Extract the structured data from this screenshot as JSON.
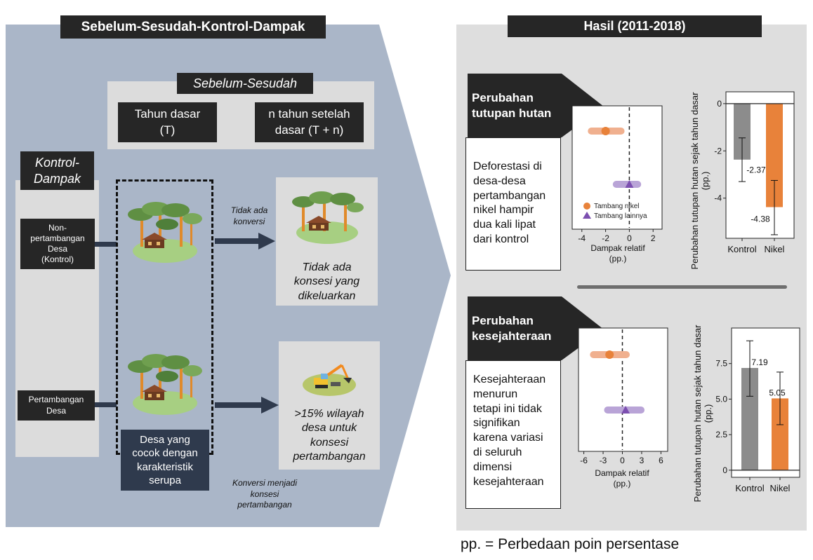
{
  "left": {
    "title": "Sebelum-Sesudah-Kontrol-Dampak",
    "before_after": {
      "label": "Sebelum-Sesudah",
      "base_year": "Tahun dasar\n(T)",
      "after_year": "n tahun setelah\ndasar (T + n)"
    },
    "control_impact": {
      "label": "Kontrol-\nDampak",
      "control_village": "Non-\npertambangan\nDesa\n(Kontrol)",
      "mining_village": "Pertambangan\nDesa"
    },
    "arrow_top_label": "Tidak ada\nkonversi",
    "outcome_top": "Tidak ada\nkonsesi yang\ndikeluarkan",
    "outcome_bottom": ">15% wilayah\ndesa untuk\nkonsesi\npertambangan",
    "matched_villages": "Desa yang\ncocok dengan\nkarakteristik\nserupa",
    "arrow_bottom_label": "Konversi menjadi\nkonsesi\npertambangan"
  },
  "right": {
    "title": "Hasil (2011-2018)",
    "forest": {
      "heading": "Perubahan\ntutupan hutan",
      "desc": "Deforestasi di\ndesa-desa\npertambangan\nnikel hampir\ndua kali lipat\ndari kontrol"
    },
    "welfare": {
      "heading": "Perubahan\nkesejahteraan",
      "desc": "Kesejahteraan\nmenurun\ntetapi ini tidak\nsignifikan\nkarena variasi\ndi seluruh\ndimensi\nkesejahteraan"
    },
    "footnote": "pp. = Perbedaan poin persentase"
  },
  "colors": {
    "left_panel": "#aab6c8",
    "right_panel": "#dedede",
    "dark_box": "#262626",
    "navy_box": "#2f3a4d",
    "nickel_orange": "#e8823a",
    "nickel_band": "#f0b08f",
    "other_purple": "#7c4fb0",
    "other_band": "#b9a4d7",
    "control_gray": "#8c8c8c",
    "divider": "#6e6e6e"
  },
  "chart_data": [
    {
      "type": "scatter",
      "panel": "forest-dot",
      "xlabel": "Dampak relatif\n(pp.)",
      "xlim": [
        -4.4,
        2.4
      ],
      "xticks": [
        -4,
        -2,
        0,
        2
      ],
      "series": [
        {
          "name": "Tambang nikel",
          "value": -2.0,
          "ci": [
            -3.2,
            -0.7
          ],
          "marker": "circle"
        },
        {
          "name": "Tambang lainnya",
          "value": 0.0,
          "ci": [
            -1.1,
            0.7
          ],
          "marker": "triangle"
        }
      ],
      "legend": "bottom-left"
    },
    {
      "type": "bar",
      "panel": "forest-bar",
      "categories": [
        "Kontrol",
        "Nikel"
      ],
      "values": [
        -2.37,
        -4.38
      ],
      "value_labels": [
        "-2.37",
        "-4.38"
      ],
      "errors": [
        [
          -1.45,
          -3.3
        ],
        [
          -3.25,
          -5.55
        ]
      ],
      "ylabel": "Perubahan tutupan hutan sejak tahun dasar\n(pp.)",
      "ylim": [
        -5.7,
        0.5
      ],
      "yticks": [
        0,
        -2,
        -4
      ]
    },
    {
      "type": "scatter",
      "panel": "welfare-dot",
      "xlabel": "Dampak relatif\n(pp.)",
      "xlim": [
        -6.5,
        6.5
      ],
      "xticks": [
        -6,
        -3,
        0,
        3,
        6
      ],
      "series": [
        {
          "name": "Tambang nikel",
          "value": -2.0,
          "ci": [
            -4.5,
            0.6
          ],
          "marker": "circle"
        },
        {
          "name": "Tambang lainnya",
          "value": 0.5,
          "ci": [
            -2.3,
            2.9
          ],
          "marker": "triangle"
        }
      ]
    },
    {
      "type": "bar",
      "panel": "welfare-bar",
      "categories": [
        "Kontrol",
        "Nikel"
      ],
      "values": [
        7.19,
        5.05
      ],
      "value_labels": [
        "7.19",
        "5.05"
      ],
      "errors": [
        [
          9.1,
          5.2
        ],
        [
          6.9,
          3.2
        ]
      ],
      "ylabel": "Perubahan tutupan hutan sejak tahun dasar\n(pp.)",
      "ylim": [
        -0.5,
        10.0
      ],
      "yticks": [
        0,
        2.5,
        5.0,
        7.5
      ],
      "ytick_labels": [
        "0",
        "2.5",
        "5.0",
        "7.5"
      ]
    }
  ]
}
